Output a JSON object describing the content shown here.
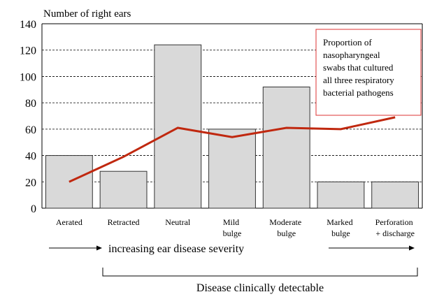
{
  "chart_data": {
    "type": "bar_line",
    "y_axis_label": "Number of right ears",
    "categories": [
      "Aerated",
      "Retracted",
      "Neutral",
      "Mild bulge",
      "Moderate bulge",
      "Marked bulge",
      "Perforation + discharge"
    ],
    "series": [
      {
        "type": "bar",
        "color": "#d9d9d9",
        "values": [
          40,
          28,
          124,
          60,
          92,
          20,
          20
        ]
      },
      {
        "type": "line",
        "color": "#c0280f",
        "values": [
          20,
          39,
          61,
          54,
          61,
          60,
          69
        ]
      }
    ],
    "ylim": [
      0,
      140
    ],
    "yticks": [
      0,
      20,
      40,
      60,
      80,
      100,
      120,
      140
    ],
    "grid": true,
    "annotation_lines": [
      "Proportion of",
      "nasopharyngeal",
      "swabs that cultured",
      "all three respiratory",
      "bacterial pathogens"
    ],
    "arrow_label": "increasing ear disease severity",
    "bracket_label": "Disease clinically detectable"
  }
}
